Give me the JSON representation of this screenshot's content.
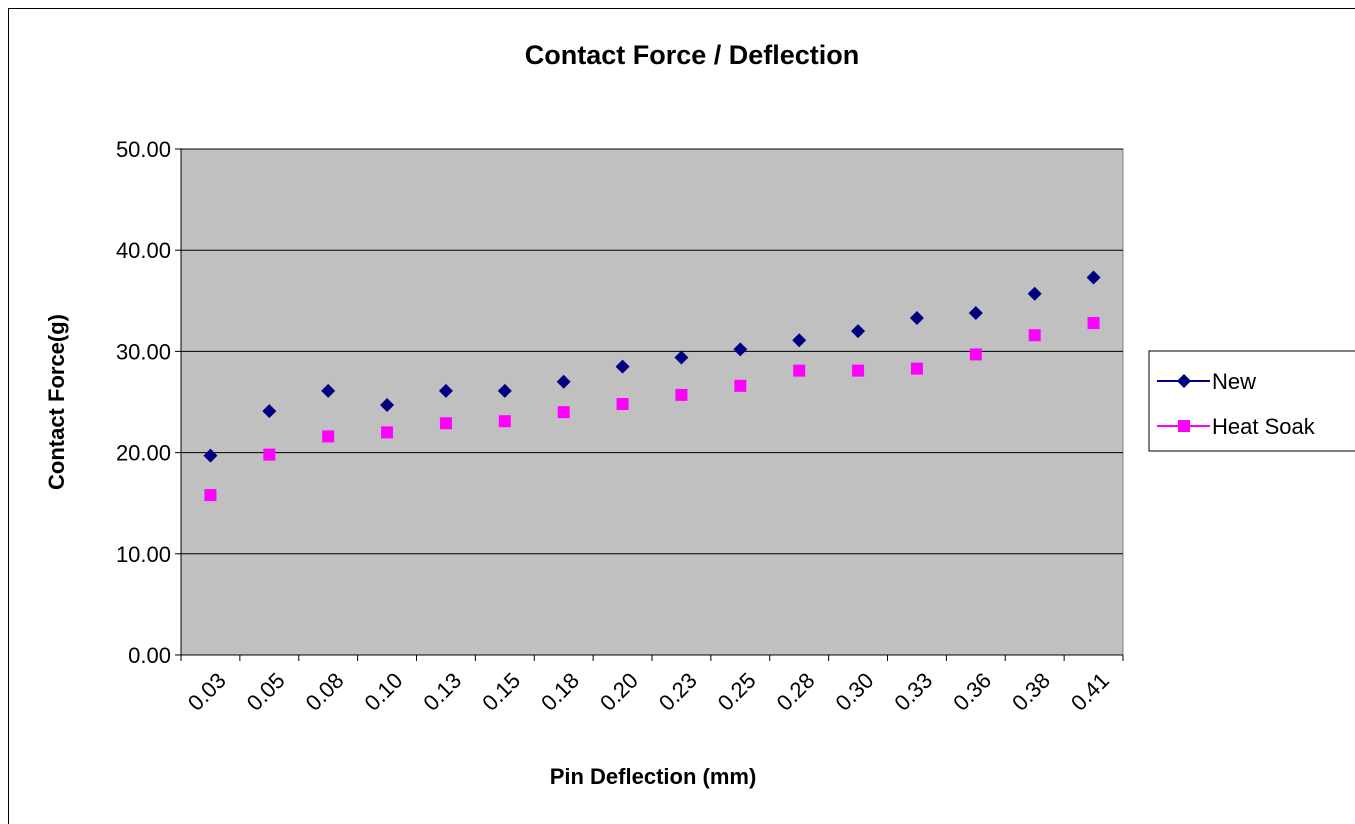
{
  "chart_data": {
    "type": "scatter",
    "title": "Contact Force / Deflection",
    "xlabel": "Pin Deflection (mm)",
    "ylabel": "Contact Force(g)",
    "ylim": [
      0,
      50
    ],
    "yticks": [
      "0.00",
      "10.00",
      "20.00",
      "30.00",
      "40.00",
      "50.00"
    ],
    "categories": [
      "0.03",
      "0.05",
      "0.08",
      "0.10",
      "0.13",
      "0.15",
      "0.18",
      "0.20",
      "0.23",
      "0.25",
      "0.28",
      "0.30",
      "0.33",
      "0.36",
      "0.38",
      "0.41"
    ],
    "grid": true,
    "legend_position": "right",
    "plot_background": "#c0c0c0",
    "series": [
      {
        "name": "New",
        "marker": "diamond",
        "color": "#000080",
        "values": [
          19.7,
          24.1,
          26.1,
          24.7,
          26.1,
          26.1,
          27.0,
          28.5,
          29.4,
          30.2,
          31.1,
          32.0,
          33.3,
          33.8,
          35.7,
          37.3
        ]
      },
      {
        "name": "Heat Soak",
        "marker": "square",
        "color": "#ff00ff",
        "values": [
          15.8,
          19.8,
          21.6,
          22.0,
          22.9,
          23.1,
          24.0,
          24.8,
          25.7,
          26.6,
          28.1,
          28.1,
          28.3,
          29.7,
          31.6,
          32.8
        ]
      }
    ]
  }
}
